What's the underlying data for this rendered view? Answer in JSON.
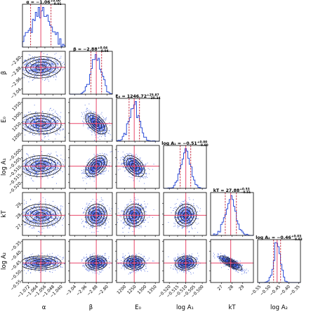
{
  "chart_data": {
    "type": "corner",
    "parameters": [
      {
        "key": "alpha",
        "label": "α",
        "median": -1.06,
        "lo": -1.07,
        "hi": -1.05,
        "range": [
          -1.078,
          -1.036
        ],
        "ticks": [
          -1.072,
          -1.064,
          -1.056,
          -1.048,
          -1.04
        ],
        "tick_labels": [
          "−1.072",
          "−1.064",
          "−1.056",
          "−1.048",
          "−1.040"
        ],
        "title_main": "α = −1.06",
        "title_sup": "+0.00",
        "title_sub": "−0.01"
      },
      {
        "key": "beta",
        "label": "β",
        "median": -2.88,
        "lo": -2.92,
        "hi": -2.84,
        "range": [
          -3.08,
          -2.76
        ],
        "ticks": [
          -3.04,
          -2.96,
          -2.88,
          -2.8
        ],
        "tick_labels": [
          "−3.04",
          "−2.96",
          "−2.88",
          "−2.80"
        ],
        "title_main": "β = −2.88",
        "title_sup": "+0.04",
        "title_sub": "−0.04"
      },
      {
        "key": "E0",
        "label": "E₀",
        "median": 1246.72,
        "lo": 1221.5,
        "hi": 1272.6,
        "range": [
          1160,
          1370
        ],
        "ticks": [
          1200,
          1250,
          1300,
          1350
        ],
        "tick_labels": [
          "1200",
          "1250",
          "1300",
          "1350"
        ],
        "title_main": "E₀ = 1246.72",
        "title_sup": "+25.87",
        "title_sub": "−25.24"
      },
      {
        "key": "logA1",
        "label": "log A₁",
        "median": -0.51,
        "lo": -0.5134,
        "hi": -0.507,
        "range": [
          -0.5235,
          -0.4975
        ],
        "ticks": [
          -0.52,
          -0.515,
          -0.51,
          -0.505,
          -0.5
        ],
        "tick_labels": [
          "−0.520",
          "−0.515",
          "−0.510",
          "−0.505",
          "−0.500"
        ],
        "title_main": "log A₁ = −0.51",
        "title_sup": "+0.00",
        "title_sub": "−0.00"
      },
      {
        "key": "kT",
        "label": "kT",
        "median": 27.88,
        "lo": 27.37,
        "hi": 28.41,
        "range": [
          26.0,
          30.0
        ],
        "ticks": [
          27,
          28,
          29
        ],
        "tick_labels": [
          "27",
          "28",
          "29"
        ],
        "title_main": "kT = 27.88",
        "title_sup": "+0.53",
        "title_sub": "−0.51"
      },
      {
        "key": "logA2",
        "label": "log A₂",
        "median": -0.46,
        "lo": -0.478,
        "hi": -0.442,
        "range": [
          -0.56,
          -0.34
        ],
        "ticks": [
          -0.55,
          -0.5,
          -0.45,
          -0.4,
          -0.35
        ],
        "tick_labels": [
          "−0.55",
          "−0.50",
          "−0.45",
          "−0.40",
          "−0.35"
        ],
        "title_main": "log A₂ = −0.46",
        "title_sup": "+0.03",
        "title_sub": "−0.03"
      }
    ],
    "correlations": [
      [
        1.0,
        0.1,
        -0.05,
        0.05,
        0.0,
        0.05
      ],
      [
        0.1,
        1.0,
        -0.55,
        0.45,
        0.05,
        0.05
      ],
      [
        -0.05,
        -0.55,
        1.0,
        -0.45,
        0.05,
        0.0
      ],
      [
        0.05,
        0.45,
        -0.45,
        1.0,
        0.05,
        0.1
      ],
      [
        0.0,
        0.05,
        0.05,
        0.05,
        1.0,
        -0.8
      ],
      [
        0.05,
        0.05,
        0.0,
        0.1,
        -0.8,
        1.0
      ]
    ],
    "colors": {
      "samples": "#2f4fd8",
      "histogram": "#2f4fd8",
      "truth": "#e8476a",
      "quantile": "#c0223a",
      "contour": "#1a1a1a"
    },
    "n_samples": 900,
    "n_bins": 30,
    "grid": false
  }
}
